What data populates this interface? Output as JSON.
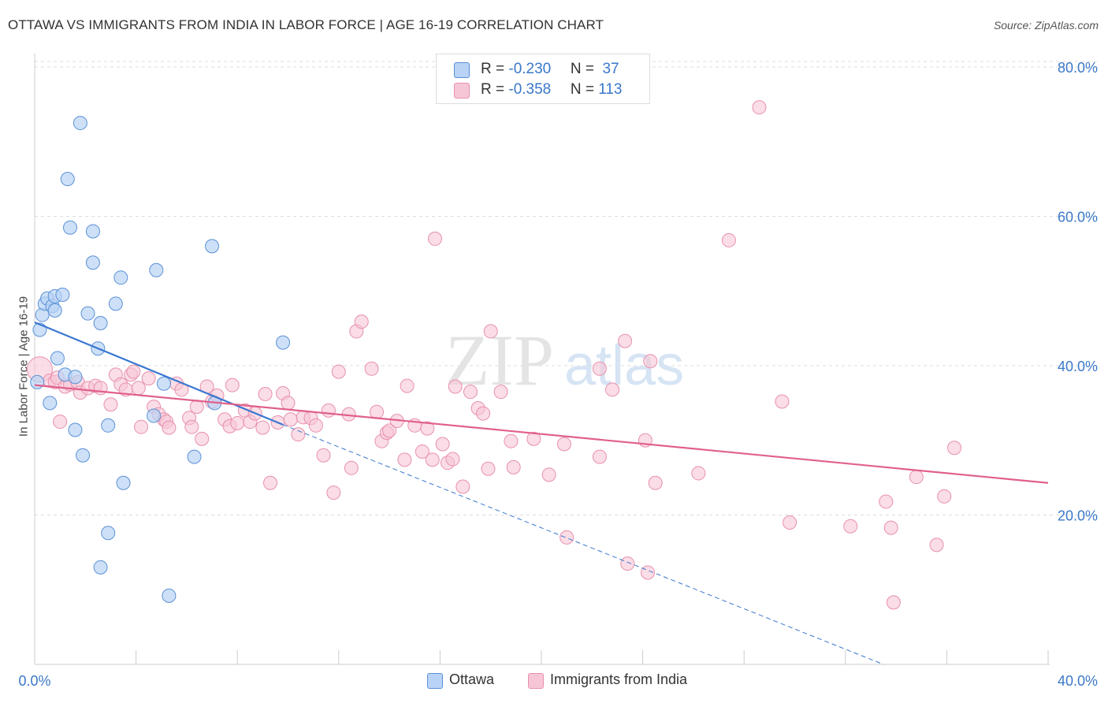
{
  "title": "OTTAWA VS IMMIGRANTS FROM INDIA IN LABOR FORCE | AGE 16-19 CORRELATION CHART",
  "source": "Source: ZipAtlas.com",
  "watermark": {
    "zip": "ZIP",
    "atlas": "atlas"
  },
  "stats": [
    {
      "r_label": "R = ",
      "r_value": "-0.230",
      "n_label": "N = ",
      "n_value": " 37"
    },
    {
      "r_label": "R = ",
      "r_value": "-0.358",
      "n_label": "N = ",
      "n_value": "113"
    }
  ],
  "legend": [
    {
      "label": "Ottawa"
    },
    {
      "label": "Immigrants from India"
    }
  ],
  "colors": {
    "blue_fill": "#b8d3f5",
    "blue_stroke": "#5b91d6",
    "blue_line": "#3a78d0",
    "pink_fill": "#f7c6d6",
    "pink_stroke": "#e890ad",
    "pink_line": "#e0608c",
    "tick_text": "#3a78c9",
    "grid": "#dddddd"
  },
  "chart_data": {
    "type": "scatter",
    "title": "OTTAWA VS IMMIGRANTS FROM INDIA IN LABOR FORCE | AGE 16-19 CORRELATION CHART",
    "xlabel": "",
    "ylabel": "In Labor Force | Age 16-19",
    "xlim": [
      0,
      40
    ],
    "ylim": [
      0,
      83
    ],
    "x_tick_labels": [
      "0.0%",
      "40.0%"
    ],
    "y_ticks": [
      20,
      40,
      60,
      80
    ],
    "y_tick_labels": [
      "20.0%",
      "40.0%",
      "60.0%",
      "80.0%"
    ],
    "grid": true,
    "legend_position": "bottom",
    "series": [
      {
        "name": "Ottawa",
        "r": -0.23,
        "n": 37,
        "trend": {
          "x0": 0,
          "y0": 45.8,
          "x1": 9.8,
          "y1": 32.1,
          "dashed_to_x": 33.5,
          "dashed_to_y": 0
        },
        "points": [
          [
            0.1,
            37.8
          ],
          [
            0.2,
            44.8
          ],
          [
            0.3,
            46.8
          ],
          [
            0.4,
            48.3
          ],
          [
            0.5,
            49.0
          ],
          [
            0.6,
            35.0
          ],
          [
            0.7,
            48.0
          ],
          [
            0.8,
            49.3
          ],
          [
            0.8,
            47.4
          ],
          [
            0.9,
            41.0
          ],
          [
            1.1,
            49.5
          ],
          [
            1.2,
            38.8
          ],
          [
            1.3,
            65.0
          ],
          [
            1.4,
            58.5
          ],
          [
            1.6,
            31.4
          ],
          [
            1.6,
            38.5
          ],
          [
            1.8,
            72.5
          ],
          [
            1.9,
            28.0
          ],
          [
            2.1,
            47.0
          ],
          [
            2.3,
            58.0
          ],
          [
            2.3,
            53.8
          ],
          [
            2.5,
            42.3
          ],
          [
            2.6,
            45.7
          ],
          [
            2.9,
            32.0
          ],
          [
            2.9,
            17.6
          ],
          [
            3.2,
            48.3
          ],
          [
            3.4,
            51.8
          ],
          [
            3.5,
            24.3
          ],
          [
            2.6,
            13.0
          ],
          [
            4.7,
            33.3
          ],
          [
            4.8,
            52.8
          ],
          [
            5.1,
            37.6
          ],
          [
            5.3,
            9.2
          ],
          [
            6.3,
            27.8
          ],
          [
            7.0,
            56.0
          ],
          [
            7.1,
            35.0
          ],
          [
            9.8,
            43.1
          ]
        ]
      },
      {
        "name": "Immigrants from India",
        "r": -0.358,
        "n": 113,
        "trend": {
          "x0": 0,
          "y0": 37.4,
          "x1": 40,
          "y1": 24.3
        },
        "points": [
          [
            0.2,
            39.5
          ],
          [
            0.6,
            38.0
          ],
          [
            0.8,
            37.8
          ],
          [
            0.9,
            38.4
          ],
          [
            1.0,
            32.5
          ],
          [
            1.2,
            37.2
          ],
          [
            1.4,
            37.5
          ],
          [
            1.7,
            37.8
          ],
          [
            1.8,
            36.4
          ],
          [
            2.1,
            37.0
          ],
          [
            2.4,
            37.3
          ],
          [
            2.6,
            37.0
          ],
          [
            3.0,
            34.8
          ],
          [
            3.2,
            38.8
          ],
          [
            3.4,
            37.5
          ],
          [
            3.6,
            36.8
          ],
          [
            3.8,
            38.8
          ],
          [
            3.9,
            39.2
          ],
          [
            4.1,
            37.0
          ],
          [
            4.2,
            31.8
          ],
          [
            4.5,
            38.3
          ],
          [
            4.7,
            34.5
          ],
          [
            4.9,
            33.5
          ],
          [
            5.1,
            32.8
          ],
          [
            5.2,
            32.5
          ],
          [
            5.3,
            31.7
          ],
          [
            5.6,
            37.6
          ],
          [
            5.8,
            36.8
          ],
          [
            6.1,
            33.0
          ],
          [
            6.2,
            31.8
          ],
          [
            6.4,
            34.5
          ],
          [
            6.6,
            30.2
          ],
          [
            6.8,
            37.2
          ],
          [
            7.0,
            35.2
          ],
          [
            7.2,
            36.0
          ],
          [
            7.5,
            32.8
          ],
          [
            7.7,
            31.9
          ],
          [
            7.8,
            37.4
          ],
          [
            8.0,
            32.3
          ],
          [
            8.3,
            34.0
          ],
          [
            8.5,
            32.5
          ],
          [
            8.7,
            33.6
          ],
          [
            9.0,
            31.7
          ],
          [
            9.1,
            36.2
          ],
          [
            9.3,
            24.3
          ],
          [
            9.6,
            32.4
          ],
          [
            9.8,
            36.3
          ],
          [
            10.0,
            35.0
          ],
          [
            10.1,
            32.8
          ],
          [
            10.4,
            30.8
          ],
          [
            10.6,
            33.1
          ],
          [
            10.9,
            33.0
          ],
          [
            11.1,
            32.0
          ],
          [
            11.4,
            28.0
          ],
          [
            11.6,
            34.0
          ],
          [
            11.8,
            23.0
          ],
          [
            12.0,
            39.2
          ],
          [
            12.4,
            33.5
          ],
          [
            12.5,
            26.3
          ],
          [
            12.7,
            44.6
          ],
          [
            12.9,
            45.9
          ],
          [
            13.3,
            39.6
          ],
          [
            13.5,
            33.8
          ],
          [
            13.7,
            29.9
          ],
          [
            13.9,
            31.0
          ],
          [
            14.0,
            31.3
          ],
          [
            14.3,
            32.6
          ],
          [
            14.6,
            27.4
          ],
          [
            14.7,
            37.3
          ],
          [
            15.0,
            32.0
          ],
          [
            15.3,
            28.5
          ],
          [
            15.5,
            31.6
          ],
          [
            15.7,
            27.4
          ],
          [
            15.8,
            57.0
          ],
          [
            16.1,
            29.5
          ],
          [
            16.3,
            27.0
          ],
          [
            16.5,
            27.5
          ],
          [
            16.6,
            37.2
          ],
          [
            16.9,
            23.8
          ],
          [
            17.2,
            36.5
          ],
          [
            17.5,
            34.3
          ],
          [
            17.7,
            33.6
          ],
          [
            17.9,
            26.2
          ],
          [
            18.0,
            44.6
          ],
          [
            18.4,
            36.5
          ],
          [
            18.8,
            29.9
          ],
          [
            18.9,
            26.4
          ],
          [
            19.7,
            30.2
          ],
          [
            20.3,
            25.4
          ],
          [
            20.9,
            29.5
          ],
          [
            21.0,
            17.0
          ],
          [
            22.3,
            27.8
          ],
          [
            22.3,
            39.6
          ],
          [
            22.8,
            36.8
          ],
          [
            23.3,
            43.3
          ],
          [
            23.4,
            13.5
          ],
          [
            24.1,
            30.0
          ],
          [
            24.2,
            12.3
          ],
          [
            24.3,
            40.6
          ],
          [
            24.5,
            24.3
          ],
          [
            26.2,
            25.6
          ],
          [
            27.4,
            56.8
          ],
          [
            28.6,
            74.6
          ],
          [
            29.5,
            35.2
          ],
          [
            29.8,
            19.0
          ],
          [
            32.2,
            18.5
          ],
          [
            33.6,
            21.8
          ],
          [
            33.8,
            18.3
          ],
          [
            33.9,
            8.3
          ],
          [
            34.8,
            25.1
          ],
          [
            35.6,
            16.0
          ],
          [
            35.9,
            22.5
          ],
          [
            36.3,
            29.0
          ]
        ]
      }
    ]
  }
}
